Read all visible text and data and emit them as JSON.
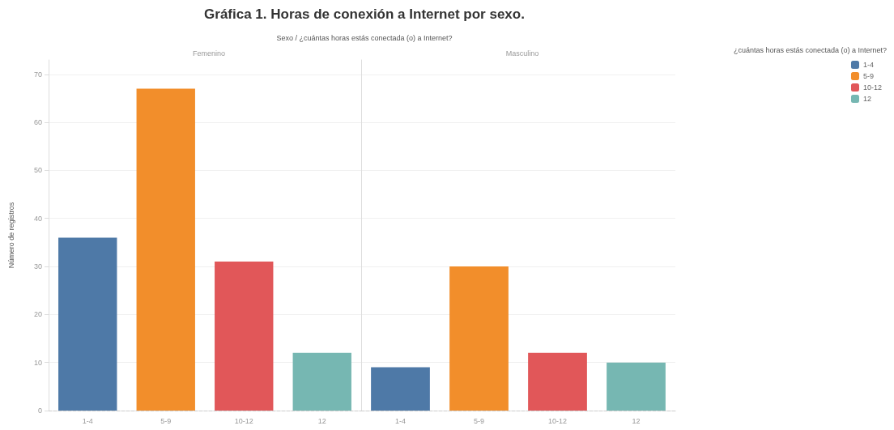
{
  "chart_data": [
    {
      "type": "bar",
      "title": "Gráfica 1. Horas de conexión a Internet por sexo.",
      "subtitle": "Sexo / ¿cuántas horas estás conectada (o) a Internet?",
      "annotations": [
        "Femenino"
      ],
      "ylabel": "Número de registros",
      "categories": [
        "1-4",
        "5-9",
        "10-12",
        "12"
      ],
      "series": [
        {
          "color": "#4e79a7",
          "values": [
            36,
            null,
            null,
            null
          ]
        },
        {
          "color": "#f28e2b",
          "values": [
            null,
            67,
            null,
            null
          ]
        },
        {
          "color": "#e15759",
          "values": [
            null,
            null,
            31,
            null
          ]
        },
        {
          "color": "#76b7b2",
          "values": [
            null,
            null,
            null,
            12
          ]
        }
      ],
      "ylim": [
        0,
        73
      ],
      "yticks": [
        0,
        10,
        20,
        30,
        40,
        50,
        60,
        70
      ],
      "grid": "y"
    },
    {
      "type": "bar",
      "annotations": [
        "Masculino"
      ],
      "categories": [
        "1-4",
        "5-9",
        "10-12",
        "12"
      ],
      "series": [
        {
          "name": "1-4",
          "color": "#4e79a7",
          "values": [
            9,
            null,
            null,
            null
          ]
        },
        {
          "name": "5-9",
          "color": "#f28e2b",
          "values": [
            null,
            30,
            null,
            null
          ]
        },
        {
          "name": "10-12",
          "color": "#e15759",
          "values": [
            null,
            null,
            12,
            null
          ]
        },
        {
          "name": "12",
          "color": "#76b7b2",
          "values": [
            null,
            null,
            null,
            10
          ]
        }
      ],
      "ylim": [
        0,
        73
      ],
      "yticks": [
        0,
        10,
        20,
        30,
        40,
        50,
        60,
        70
      ],
      "grid": "y",
      "tick_labels": "x",
      "legend": "right",
      "legend_title": "¿cuántas horas estás conectada (o) a Internet?"
    }
  ]
}
